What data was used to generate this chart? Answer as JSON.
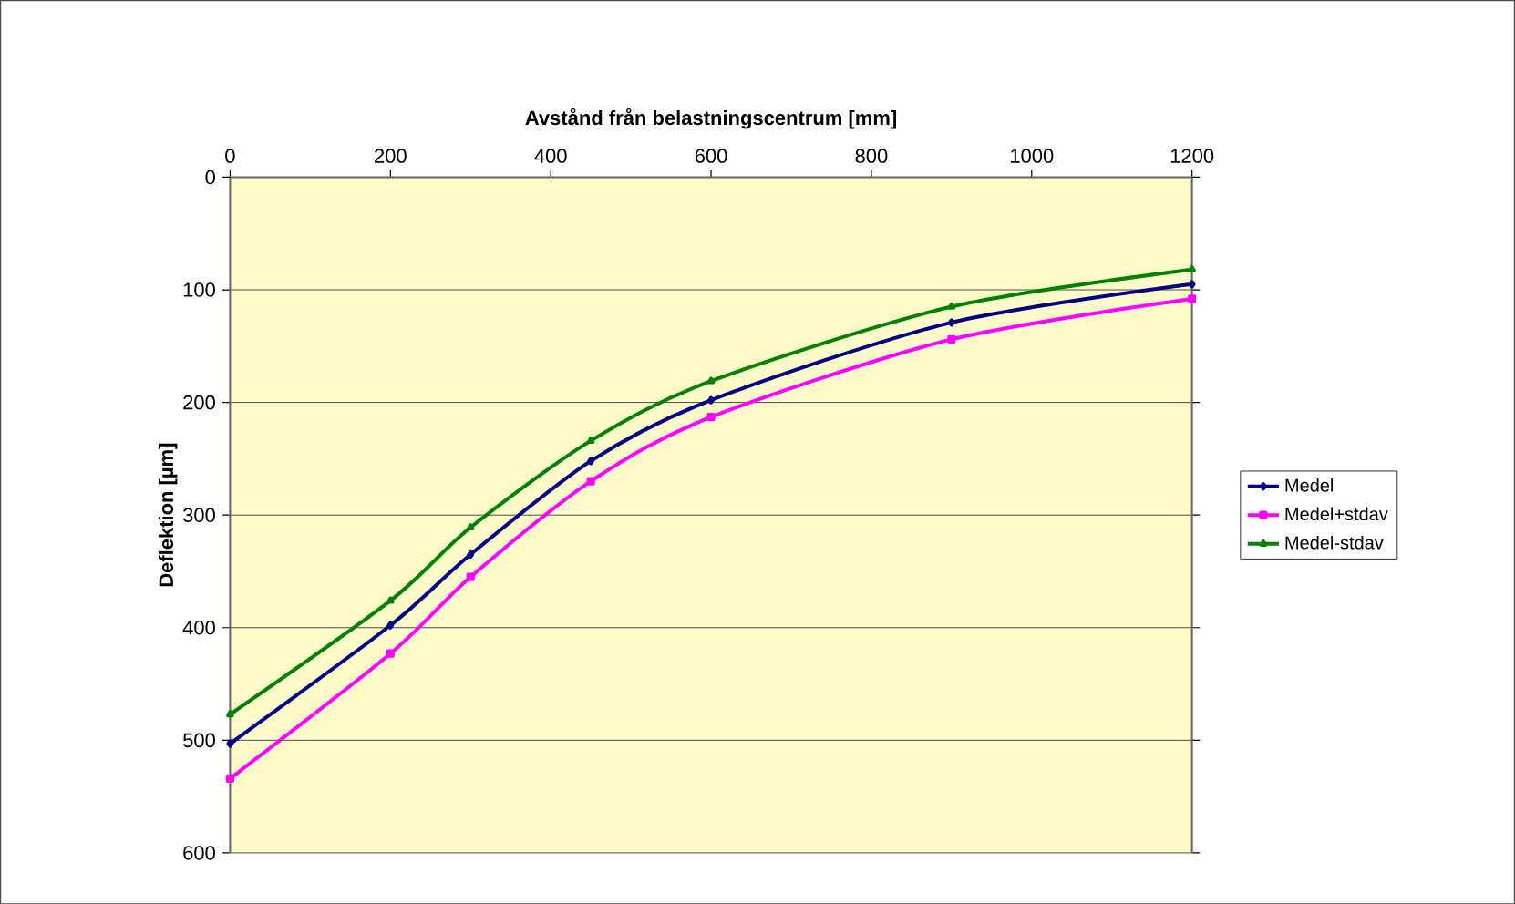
{
  "chart_data": {
    "type": "line",
    "xlabel": "Avstånd från belastningscentrum [mm]",
    "ylabel": "Deflektion [µm]",
    "x": [
      0,
      200,
      300,
      450,
      600,
      900,
      1200
    ],
    "xlim": [
      0,
      1200
    ],
    "xticks": [
      0,
      200,
      400,
      600,
      800,
      1000,
      1200
    ],
    "ylim": [
      600,
      0
    ],
    "yticks": [
      0,
      100,
      200,
      300,
      400,
      500,
      600
    ],
    "grid": "y",
    "legend": "right",
    "line_style": "solid",
    "series": [
      {
        "name": "Medel",
        "color": "#000080",
        "marker": "diamond",
        "values": [
          503,
          398,
          335,
          252,
          198,
          129,
          95
        ]
      },
      {
        "name": "Medel+stdav",
        "color": "#ff00ff",
        "marker": "square",
        "values": [
          534,
          423,
          355,
          270,
          213,
          144,
          108
        ]
      },
      {
        "name": "Medel-stdav",
        "color": "#008000",
        "marker": "triangle",
        "values": [
          477,
          376,
          311,
          234,
          181,
          115,
          82
        ]
      }
    ]
  }
}
